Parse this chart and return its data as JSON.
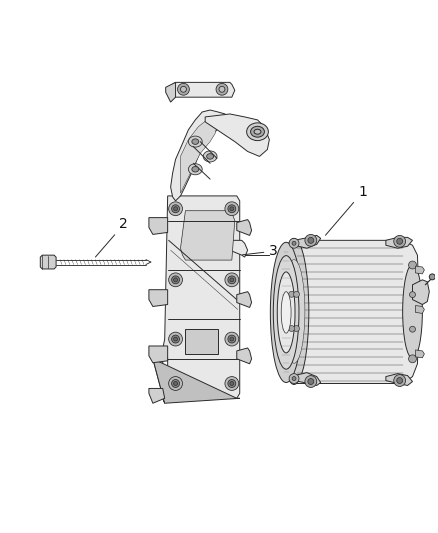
{
  "background_color": "#ffffff",
  "fig_width": 4.38,
  "fig_height": 5.33,
  "dpi": 100,
  "label_1": "1",
  "label_2": "2",
  "label_3": "3",
  "line_color": "#2a2a2a",
  "line_width": 0.7,
  "font_size": 10,
  "lc_fill": "#e8e8e8",
  "lc_fill2": "#d0d0d0",
  "lc_fill3": "#c0c0c0"
}
